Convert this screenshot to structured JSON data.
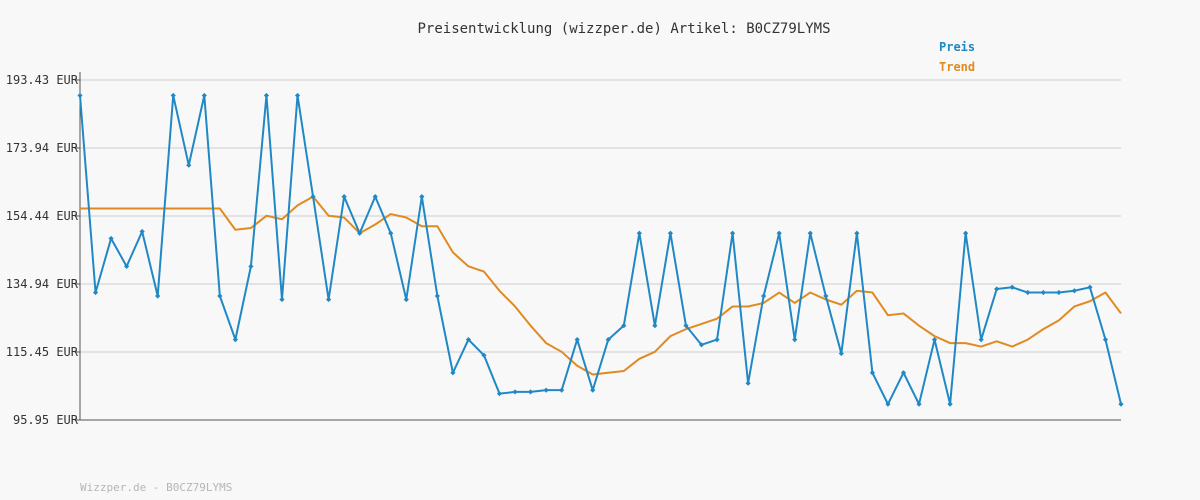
{
  "chart_data": {
    "type": "line",
    "title": "Preisentwicklung (wizzper.de) Artikel: B0CZ79LYMS",
    "footer": "Wizzper.de - B0CZ79LYMS",
    "xlabel": "",
    "ylabel": "",
    "yticks": [
      "193.43 EUR",
      "173.94 EUR",
      "154.44 EUR",
      "134.94 EUR",
      "115.45 EUR",
      "95.95 EUR"
    ],
    "ylim": [
      95.95,
      193.43
    ],
    "grid": true,
    "legend_position": "top-right",
    "series": [
      {
        "name": "Preis",
        "color": "#1f88c5",
        "marker": "diamond",
        "values": [
          189.0,
          132.5,
          148.0,
          140.0,
          150.0,
          131.5,
          189.0,
          169.0,
          189.0,
          131.5,
          119.0,
          140.0,
          189.0,
          130.5,
          189.0,
          160.0,
          130.5,
          160.0,
          149.5,
          160.0,
          149.5,
          130.5,
          160.0,
          131.5,
          109.5,
          119.0,
          114.5,
          103.5,
          104.0,
          104.0,
          104.5,
          104.5,
          119.0,
          104.5,
          119.0,
          123.0,
          149.5,
          123.0,
          149.5,
          123.0,
          117.5,
          119.0,
          149.5,
          106.5,
          131.5,
          149.5,
          119.0,
          149.5,
          131.5,
          115.0,
          149.5,
          109.5,
          100.5,
          109.5,
          100.5,
          119.0,
          100.5,
          149.5,
          119.0,
          133.5,
          134.0,
          132.5,
          132.5,
          132.5,
          133.0,
          134.0,
          119.0,
          100.5
        ]
      },
      {
        "name": "Trend",
        "color": "#e08a22",
        "marker": "none",
        "values": [
          156.6,
          156.6,
          156.6,
          156.6,
          156.6,
          156.6,
          156.6,
          156.6,
          156.6,
          156.6,
          150.5,
          151.0,
          154.5,
          153.5,
          157.5,
          160.0,
          154.5,
          154.0,
          149.5,
          152.0,
          155.0,
          154.0,
          151.5,
          151.5,
          144.0,
          140.0,
          138.5,
          133.0,
          128.5,
          123.0,
          118.0,
          115.5,
          111.5,
          109.0,
          109.5,
          110.0,
          113.5,
          115.5,
          120.0,
          122.0,
          123.5,
          125.0,
          128.5,
          128.5,
          129.5,
          132.5,
          129.5,
          132.5,
          130.5,
          129.0,
          133.0,
          132.5,
          126.0,
          126.5,
          123.0,
          120.0,
          118.0,
          118.0,
          117.0,
          118.5,
          117.0,
          119.0,
          122.0,
          124.5,
          128.5,
          130.0,
          132.5,
          126.5
        ]
      }
    ]
  }
}
